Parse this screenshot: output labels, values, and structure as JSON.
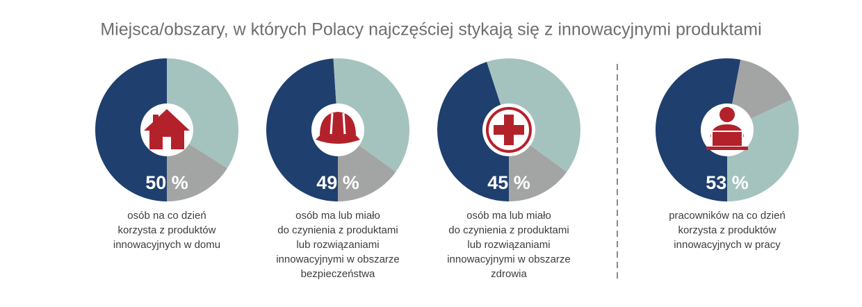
{
  "title": "Miejsca/obszary, w których Polacy najczęściej stykają się z innowacyjnymi produktami",
  "chart_data": [
    {
      "type": "pie",
      "values": [
        50,
        34,
        16
      ],
      "value_labels": [
        "50 %",
        null,
        null
      ],
      "colors": [
        "#1f3f6e",
        "#a5c3be",
        "#a2a5a4"
      ],
      "caption": [
        "osób na co dzień",
        "korzysta z produktów",
        "innowacyjnych w domu"
      ]
    },
    {
      "type": "pie",
      "values": [
        49,
        36,
        15
      ],
      "value_labels": [
        "49 %",
        null,
        null
      ],
      "colors": [
        "#1f3f6e",
        "#a5c3be",
        "#a2a5a4"
      ],
      "caption": [
        "osób ma lub miało",
        "do czynienia z produktami",
        "lub rozwiązaniami",
        "innowacyjnymi w obszarze",
        "bezpieczeństwa"
      ]
    },
    {
      "type": "pie",
      "values": [
        45,
        40,
        15
      ],
      "value_labels": [
        "45 %",
        null,
        null
      ],
      "colors": [
        "#1f3f6e",
        "#a5c3be",
        "#a2a5a4"
      ],
      "caption": [
        "osób ma lub miało",
        "do czynienia z produktami",
        "lub rozwiązaniami",
        "innowacyjnymi w obszarze",
        "zdrowia"
      ]
    },
    {
      "type": "pie",
      "values": [
        53,
        15,
        32
      ],
      "value_labels": [
        "53 %",
        null,
        null
      ],
      "colors": [
        "#1f3f6e",
        "#a2a5a4",
        "#a5c3be"
      ],
      "caption": [
        "pracowników na co dzień",
        "korzysta z produktów",
        "innowacyjnych w pracy"
      ]
    }
  ]
}
